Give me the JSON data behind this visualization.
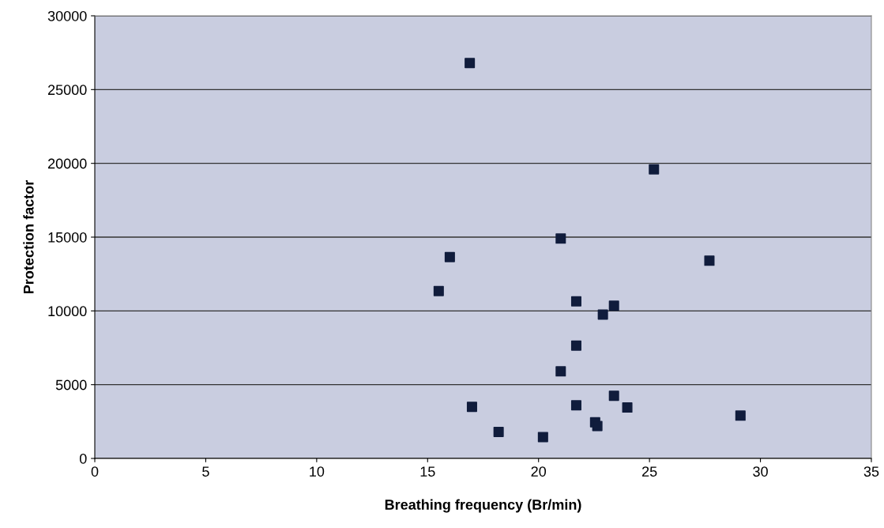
{
  "chart_data": {
    "type": "scatter",
    "xlabel": "Breathing frequency (Br/min)",
    "ylabel": "Protection factor",
    "x": [
      16.9,
      25.2,
      21.0,
      27.7,
      16.0,
      15.5,
      17.0,
      21.7,
      23.4,
      22.9,
      21.7,
      21.0,
      23.4,
      21.7,
      24.0,
      29.1,
      22.55,
      22.65,
      18.2,
      20.2
    ],
    "series": [
      {
        "color": "#101c3c",
        "values": [
          26800,
          19600,
          14900,
          13400,
          13650,
          11350,
          3500,
          10650,
          10350,
          9750,
          7650,
          5900,
          4250,
          3600,
          3450,
          2900,
          2450,
          2200,
          1800,
          1450
        ]
      }
    ],
    "xlim": [
      0,
      35
    ],
    "xticks": [
      0,
      5,
      10,
      15,
      20,
      25,
      30,
      35
    ],
    "ylim": [
      0,
      30000
    ],
    "yticks": [
      0,
      5000,
      10000,
      15000,
      20000,
      25000,
      30000
    ],
    "grid": "y",
    "marker": "square"
  }
}
